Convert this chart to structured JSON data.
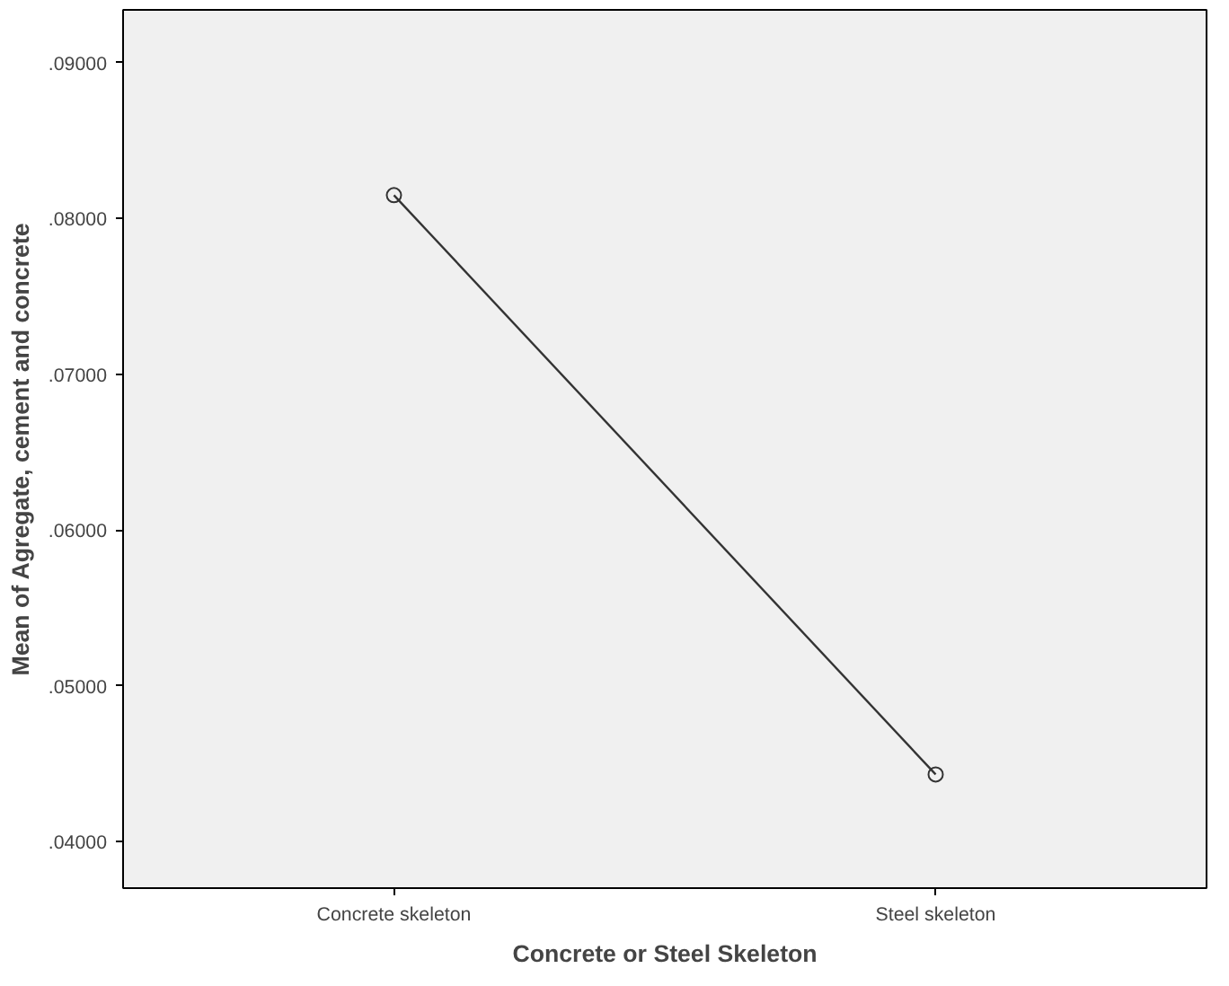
{
  "chart_data": {
    "type": "line",
    "xlabel": "Concrete or Steel Skeleton",
    "ylabel": "Mean of Agregate, cement and concrete",
    "categories": [
      "Concrete skeleton",
      "Steel skeleton"
    ],
    "series": [
      {
        "color": "#333333",
        "values": [
          0.0815,
          0.0443
        ]
      }
    ],
    "ylim": [
      0.037,
      0.0934
    ],
    "yticks": [
      {
        "value": 0.04,
        "label": ".04000"
      },
      {
        "value": 0.05,
        "label": ".05000"
      },
      {
        "value": 0.06,
        "label": ".06000"
      },
      {
        "value": 0.07,
        "label": ".07000"
      },
      {
        "value": 0.08,
        "label": ".08000"
      },
      {
        "value": 0.09,
        "label": ".09000"
      }
    ],
    "grid": false,
    "marker": "circle",
    "line_style": "solid"
  }
}
